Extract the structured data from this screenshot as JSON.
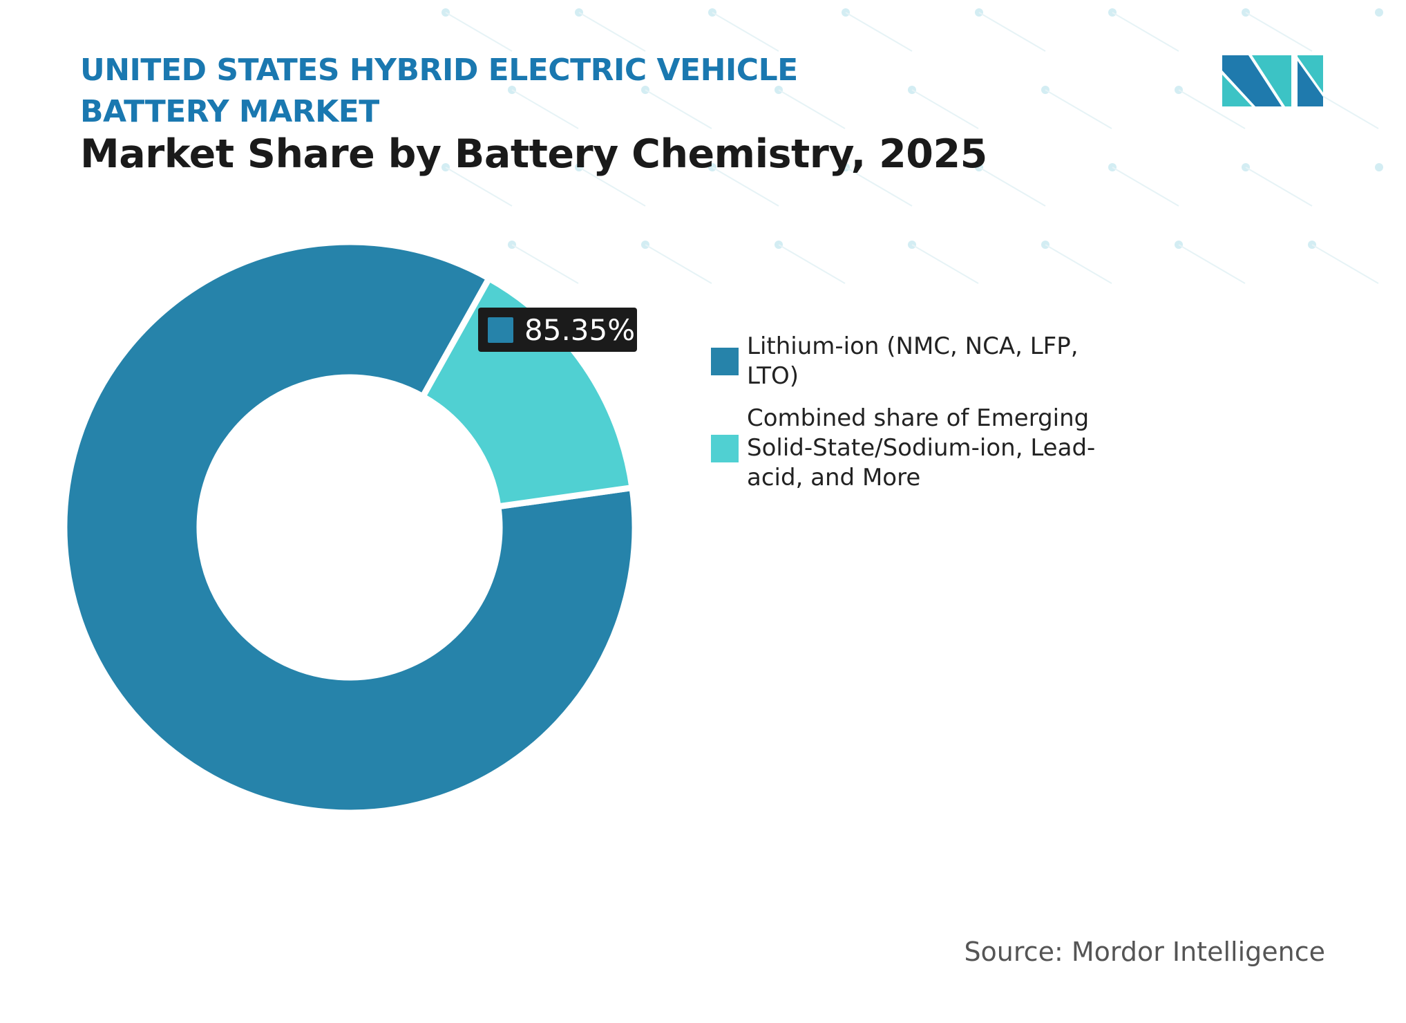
{
  "header": {
    "title": "UNITED STATES HYBRID ELECTRIC VEHICLE BATTERY MARKET",
    "subtitle": "Market Share by Battery Chemistry, 2025"
  },
  "chart_data": {
    "type": "pie",
    "variant": "donut",
    "categories": [
      "Lithium-ion (NMC, NCA, LFP, LTO)",
      "Combined share of Emerging Solid-State/Sodium-ion, Lead-acid, and More"
    ],
    "values": [
      85.35,
      14.65
    ],
    "colors": [
      "#2683aa",
      "#50d0d2"
    ],
    "data_labels": [
      {
        "category": "Lithium-ion (NMC, NCA, LFP, LTO)",
        "text": "85.35%"
      }
    ],
    "legend_position": "right"
  },
  "source": "Source: Mordor Intelligence",
  "logo": {
    "text": "Mordor Intelligence",
    "colors": [
      "#1f7aad",
      "#3cc3c5"
    ]
  }
}
